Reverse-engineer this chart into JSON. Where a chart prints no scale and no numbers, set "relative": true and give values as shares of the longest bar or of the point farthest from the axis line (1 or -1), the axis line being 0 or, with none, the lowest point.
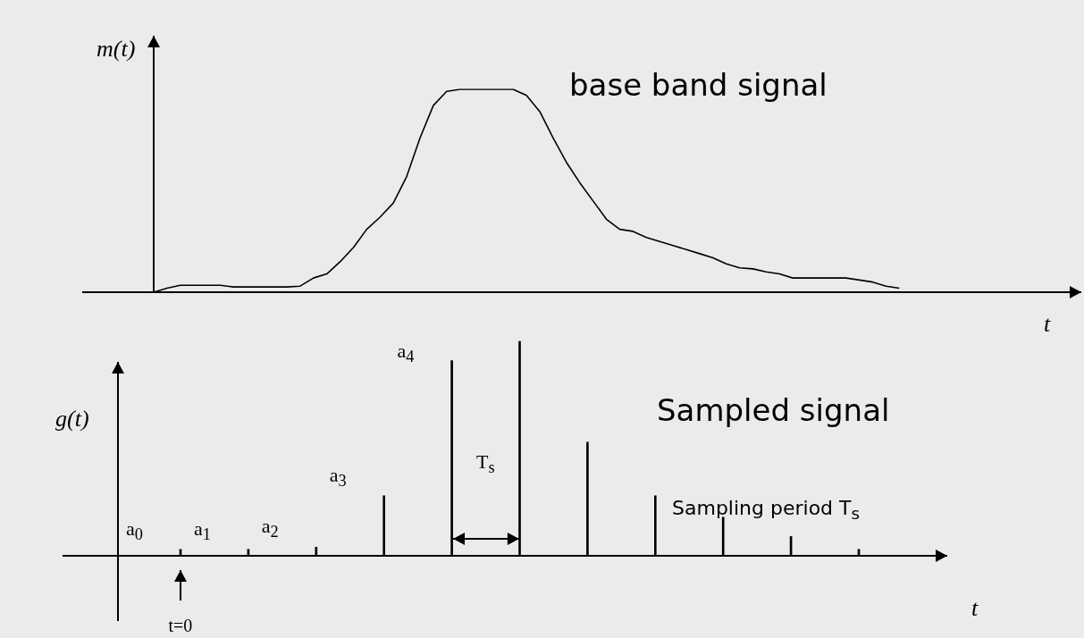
{
  "chart_data": [
    {
      "type": "line",
      "relative": true,
      "ylabel": "m(t)",
      "xlabel": "t",
      "annotations": [
        "base band signal"
      ],
      "categories": [
        null,
        null,
        null,
        null,
        null,
        null,
        null,
        null,
        null,
        null,
        null,
        null,
        null,
        null,
        null,
        null,
        null,
        null,
        null,
        null,
        null,
        null,
        null,
        null,
        null,
        null,
        null,
        null,
        null,
        null,
        null,
        null,
        null,
        null,
        null,
        null,
        null,
        null,
        null,
        null,
        null,
        null,
        null,
        null,
        null,
        null,
        null,
        null,
        null,
        null,
        null,
        null,
        null,
        null,
        null,
        null,
        null,
        null,
        null,
        null,
        null,
        null,
        null,
        null,
        null,
        null,
        null,
        null,
        null,
        null
      ],
      "color": "#000000",
      "values": [
        0,
        0.02,
        0.034,
        0.034,
        0.034,
        0.034,
        0.026,
        0.026,
        0.026,
        0.026,
        0.026,
        0.03,
        0.07,
        0.09,
        0.15,
        0.22,
        0.31,
        0.37,
        0.44,
        0.57,
        0.76,
        0.92,
        0.99,
        1,
        1,
        1,
        1,
        1,
        0.97,
        0.89,
        0.76,
        0.64,
        0.54,
        0.45,
        0.36,
        0.31,
        0.3,
        0.27,
        0.25,
        0.23,
        0.21,
        0.19,
        0.17,
        0.14,
        0.12,
        0.115,
        0.1,
        0.09,
        0.07,
        0.07,
        0.07,
        0.07,
        0.07,
        0.06,
        0.05,
        0.03,
        0.02,
        null,
        null,
        null,
        null,
        null,
        null,
        null,
        null,
        null,
        null,
        null,
        null,
        null
      ]
    },
    {
      "type": "bar",
      "relative": true,
      "ylabel": "g(t)",
      "xlabel": "t",
      "annotations": [
        "Sampled signal",
        "Sampling period T$_{s}$",
        "T$_{s}$",
        "t=0",
        "a$_{0}$",
        "a$_{1}$",
        "a$_{2}$",
        "a$_{3}$",
        "a$_{4}$"
      ],
      "categories": [
        null,
        null,
        null,
        null,
        null,
        null,
        null,
        null,
        null,
        null,
        null
      ],
      "color": "#000000",
      "values": [
        0.03,
        0.03,
        0.04,
        0.28,
        0.91,
        1,
        0.53,
        0.28,
        0.18,
        0.09,
        0.03
      ]
    }
  ]
}
